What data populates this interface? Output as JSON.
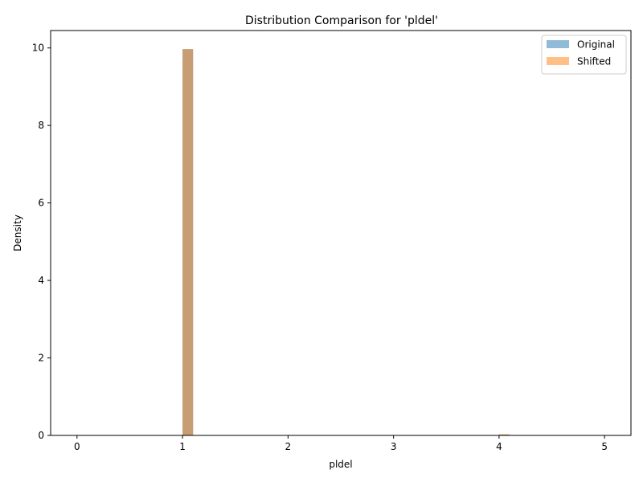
{
  "chart_data": {
    "type": "bar",
    "title": "Distribution Comparison for 'pldel'",
    "xlabel": "pldel",
    "ylabel": "Density",
    "xlim": [
      -0.25,
      5.25
    ],
    "ylim": [
      0,
      10.45
    ],
    "x_ticks": [
      "0",
      "1",
      "2",
      "3",
      "4",
      "5"
    ],
    "y_ticks": [
      "0",
      "2",
      "4",
      "6",
      "8",
      "10"
    ],
    "bin_width": 0.1,
    "legend_position": "top-right",
    "grid": false,
    "series": [
      {
        "name": "Original",
        "color": "#1f77b4",
        "opacity": 0.5,
        "bins": [
          {
            "x": 1.0,
            "value": 9.97
          },
          {
            "x": 4.0,
            "value": 0.02
          },
          {
            "x": 4.9,
            "value": 0.01
          }
        ]
      },
      {
        "name": "Shifted",
        "color": "#ff7f0e",
        "opacity": 0.5,
        "bins": [
          {
            "x": 1.0,
            "value": 9.97
          },
          {
            "x": 4.0,
            "value": 0.03
          },
          {
            "x": 4.9,
            "value": 0.01
          }
        ]
      }
    ]
  }
}
